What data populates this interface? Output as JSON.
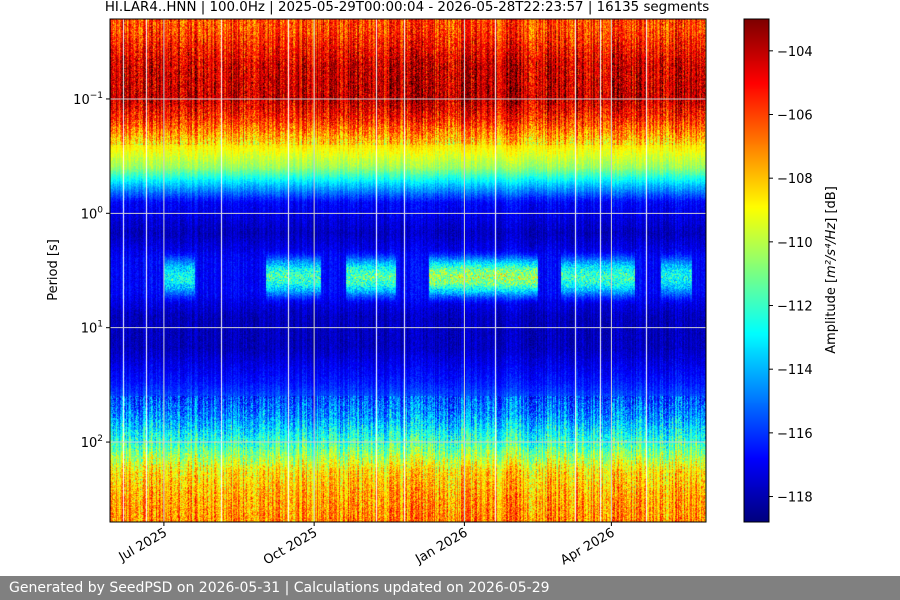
{
  "chart_data": {
    "type": "heatmap",
    "title": "HI.LAR4..HNN | 100.0Hz | 2025-05-29T00:00:04 - 2026-05-28T22:23:57 | 16135 segments",
    "xlabel": "",
    "ylabel": "Period [s]",
    "y_scale": "log",
    "y_inverted": true,
    "x_range": [
      "2025-05-29T00:00:04",
      "2026-05-28T22:23:57"
    ],
    "y_range": [
      0.02,
      500
    ],
    "x_ticks": [
      {
        "date": "2025-07-01",
        "label": "Jul 2025"
      },
      {
        "date": "2025-10-01",
        "label": "Oct 2025"
      },
      {
        "date": "2026-01-01",
        "label": "Jan 2026"
      },
      {
        "date": "2026-04-01",
        "label": "Apr 2026"
      }
    ],
    "y_ticks": [
      {
        "value": 0.1,
        "base": "10",
        "exp": "−1"
      },
      {
        "value": 1,
        "base": "10",
        "exp": "0"
      },
      {
        "value": 10,
        "base": "10",
        "exp": "1"
      },
      {
        "value": 100,
        "base": "10",
        "exp": "2"
      }
    ],
    "grid": true,
    "colorbar": {
      "label_prefix": "Amplitude [",
      "label_units": "m²/s⁴/Hz",
      "label_suffix": "] [dB]",
      "range": [
        -118.8,
        -103.0
      ],
      "colormap": "jet",
      "ticks": [
        -104,
        -106,
        -108,
        -110,
        -112,
        -114,
        -116,
        -118
      ],
      "tick_labels": [
        "−104",
        "−106",
        "−108",
        "−110",
        "−112",
        "−114",
        "−116",
        "−118"
      ]
    },
    "amplitude_profile": [
      {
        "period": 0.025,
        "db": -106.0
      },
      {
        "period": 0.05,
        "db": -104.3
      },
      {
        "period": 0.1,
        "db": -104.0
      },
      {
        "period": 0.15,
        "db": -105.5
      },
      {
        "period": 0.25,
        "db": -108.5
      },
      {
        "period": 0.4,
        "db": -110.5
      },
      {
        "period": 0.55,
        "db": -113.5
      },
      {
        "period": 0.8,
        "db": -116.8
      },
      {
        "period": 1.5,
        "db": -117.8
      },
      {
        "period": 2.5,
        "db": -116.8
      },
      {
        "period": 5.0,
        "db": -116.8
      },
      {
        "period": 8.0,
        "db": -117.8
      },
      {
        "period": 15,
        "db": -117.8
      },
      {
        "period": 30,
        "db": -116.5
      },
      {
        "period": 60,
        "db": -114.5
      },
      {
        "period": 110,
        "db": -111.5
      },
      {
        "period": 180,
        "db": -108.5
      },
      {
        "period": 300,
        "db": -107.5
      },
      {
        "period": 500,
        "db": -107.0
      }
    ],
    "microseism_episodes": [
      {
        "start": "2025-07-01",
        "end": "2025-07-20",
        "db": -111.5
      },
      {
        "start": "2025-09-01",
        "end": "2025-10-05",
        "db": -110.5
      },
      {
        "start": "2025-10-20",
        "end": "2025-11-20",
        "db": -110.0
      },
      {
        "start": "2025-12-10",
        "end": "2026-02-15",
        "db": -108.5
      },
      {
        "start": "2026-03-01",
        "end": "2026-04-15",
        "db": -110.5
      },
      {
        "start": "2026-05-01",
        "end": "2026-05-20",
        "db": -111.5
      }
    ],
    "data_gaps": [
      "2025-06-06",
      "2025-06-20",
      "2025-08-05",
      "2025-09-15",
      "2025-11-08",
      "2025-11-25",
      "2026-01-20",
      "2026-03-10",
      "2026-03-25",
      "2026-04-22"
    ],
    "colors": {
      "gap": "#ffffff",
      "grid": "#d0d0d0"
    }
  },
  "footer": {
    "text": "Generated by SeedPSD on 2026-05-31 | Calculations updated on 2026-05-29"
  }
}
